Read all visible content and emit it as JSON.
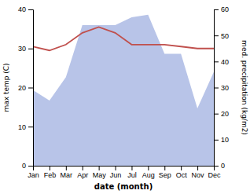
{
  "chart_data": {
    "type": "line",
    "categories": [
      "Jan",
      "Feb",
      "Mar",
      "Apr",
      "May",
      "Jun",
      "Jul",
      "Aug",
      "Sep",
      "Oct",
      "Nov",
      "Dec"
    ],
    "series": [
      {
        "type": "area",
        "axis": "y2",
        "color": "#b8c4e8",
        "values": [
          29,
          25,
          34,
          54,
          54,
          54,
          57,
          58,
          43,
          43,
          22,
          36
        ]
      },
      {
        "type": "line",
        "color": "#c0504d",
        "values": [
          30.5,
          29.5,
          31.0,
          34.0,
          35.5,
          34.0,
          31.0,
          31.0,
          31.0,
          30.5,
          30.0,
          30.0
        ]
      }
    ],
    "xlabel": "date (month)",
    "ylabel": "max temp (C)",
    "y2label": "med. precipitation (kg/m2)",
    "ylim": [
      0,
      40
    ],
    "yticks": [
      0,
      10,
      20,
      30,
      40
    ],
    "y2lim": [
      0,
      60
    ],
    "y2ticks": [
      0,
      10,
      20,
      30,
      40,
      50,
      60
    ],
    "grid": false
  }
}
